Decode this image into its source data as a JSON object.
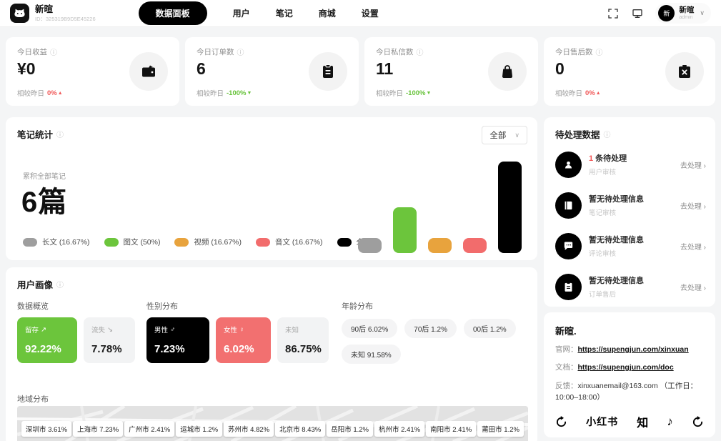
{
  "app": {
    "name": "新暄",
    "id": "ID：325319B9D5E45226"
  },
  "nav": {
    "items": [
      "数据面板",
      "用户",
      "笔记",
      "商城",
      "设置"
    ],
    "active": "数据面板"
  },
  "user_menu": {
    "avatar": "新",
    "name": "新暄",
    "role": "admin"
  },
  "icons": {
    "info": "ⓘ",
    "chevron": "∨",
    "arrow": "›",
    "male": "♂",
    "female": "♀",
    "up_right": "↗",
    "down_right": "↘",
    "note": "♪"
  },
  "stats": [
    {
      "label": "今日收益",
      "value": "¥0",
      "compare_label": "相较昨日",
      "change": "0%",
      "arrow": "▲",
      "trend_color": "#f05a5a",
      "icon": "wallet-icon"
    },
    {
      "label": "今日订单数",
      "value": "6",
      "compare_label": "相较昨日",
      "change": "-100%",
      "arrow": "▼",
      "trend_color": "#67c23a",
      "icon": "clipboard-icon"
    },
    {
      "label": "今日私信数",
      "value": "11",
      "compare_label": "相较昨日",
      "change": "-100%",
      "arrow": "▼",
      "trend_color": "#67c23a",
      "icon": "bag-icon"
    },
    {
      "label": "今日售后数",
      "value": "0",
      "compare_label": "相较昨日",
      "change": "0%",
      "arrow": "▲",
      "trend_color": "#f05a5a",
      "icon": "package-x-icon"
    }
  ],
  "note_stats": {
    "title": "笔记统计",
    "filter_label": "全部",
    "total_label": "累积全部笔记",
    "total_value": "6篇",
    "legend": [
      {
        "label": "长文 (16.67%)",
        "color": "#9e9e9e"
      },
      {
        "label": "图文 (50%)",
        "color": "#6cc53c"
      },
      {
        "label": "视频 (16.67%)",
        "color": "#e8a33d"
      },
      {
        "label": "音文 (16.67%)",
        "color": "#f26c6c"
      },
      {
        "label": "全部",
        "color": "#000000"
      }
    ],
    "chart_data": {
      "type": "bar",
      "categories": [
        "长文",
        "图文",
        "视频",
        "音文",
        "全部"
      ],
      "values": [
        16.67,
        50,
        16.67,
        16.67,
        100
      ],
      "colors": [
        "#9e9e9e",
        "#6cc53c",
        "#e8a33d",
        "#f26c6c",
        "#000000"
      ],
      "title": "笔记统计",
      "ylim": [
        0,
        100
      ]
    }
  },
  "pending": {
    "title": "待处理数据",
    "action": "去处理",
    "items": [
      {
        "icon": "user-icon",
        "count": "1",
        "text": "条待处理",
        "sub": "用户审核"
      },
      {
        "icon": "notebook-icon",
        "count": "",
        "text": "暂无待处理信息",
        "sub": "笔记审核"
      },
      {
        "icon": "comment-icon",
        "count": "",
        "text": "暂无待处理信息",
        "sub": "评论审核"
      },
      {
        "icon": "order-icon",
        "count": "",
        "text": "暂无待处理信息",
        "sub": "订单售后"
      }
    ]
  },
  "user_profile": {
    "title": "用户画像",
    "overview": {
      "label": "数据概览",
      "cards": [
        {
          "label": "留存",
          "arrow": "↗",
          "value": "92.22%",
          "style": "green"
        },
        {
          "label": "流失",
          "arrow": "↘",
          "value": "7.78%",
          "style": "gray"
        }
      ]
    },
    "gender": {
      "label": "性别分布",
      "cards": [
        {
          "label": "男性",
          "symbol": "♂",
          "value": "7.23%",
          "style": "black"
        },
        {
          "label": "女性",
          "symbol": "♀",
          "value": "6.02%",
          "style": "red"
        },
        {
          "label": "未知",
          "symbol": "",
          "value": "86.75%",
          "style": "gray"
        }
      ]
    },
    "age": {
      "label": "年龄分布",
      "pills": [
        "90后 6.02%",
        "70后 1.2%",
        "00后 1.2%",
        "未知 91.58%"
      ]
    },
    "region": {
      "label": "地域分布",
      "pills": [
        "深圳市 3.61%",
        "上海市 7.23%",
        "广州市 2.41%",
        "运城市 1.2%",
        "苏州市 4.82%",
        "北京市 8.43%",
        "岳阳市 1.2%",
        "杭州市 2.41%",
        "南阳市 2.41%",
        "莆田市 1.2%"
      ]
    }
  },
  "about": {
    "title": "新暄.",
    "website_label": "官网：",
    "website": "https://supengjun.com/xinxuan",
    "docs_label": "文档：",
    "docs": "https://supengjun.com/doc",
    "feedback_label": "反馈：",
    "feedback": "xinxuanemail@163.com （工作日：10:00–18:00）",
    "socials": {
      "xiaohongshu": "小红书",
      "zhihu": "知"
    }
  }
}
